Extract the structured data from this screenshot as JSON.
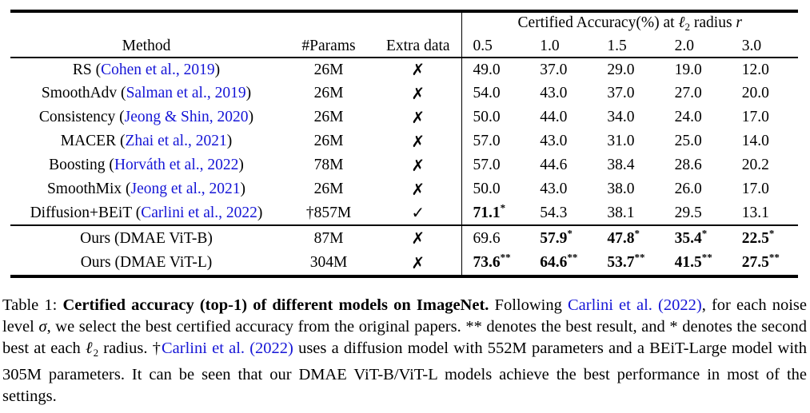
{
  "colors": {
    "citation_blue": "#1515d6",
    "text": "#000000",
    "rule": "#000000"
  },
  "symbols": {
    "cross": "✗",
    "check": "✓"
  },
  "table": {
    "header": {
      "group_title": [
        {
          "t": "Certified Accuracy(%) at "
        },
        {
          "t": "ℓ",
          "st": "i"
        },
        {
          "t": "2",
          "st": "sub"
        },
        {
          "t": " radius "
        },
        {
          "t": "r",
          "st": "i"
        }
      ],
      "col_method": "Method",
      "col_params": "#Params",
      "col_extra": "Extra data",
      "radii": [
        "0.5",
        "1.0",
        "1.5",
        "2.0",
        "3.0"
      ]
    },
    "rows": [
      {
        "method_pre": "RS (",
        "cite": "Cohen et al., 2019",
        "method_post": ")",
        "params": "26M",
        "extra": "cross",
        "values": [
          {
            "v": "49.0"
          },
          {
            "v": "37.0"
          },
          {
            "v": "29.0"
          },
          {
            "v": "19.0"
          },
          {
            "v": "12.0"
          }
        ]
      },
      {
        "method_pre": "SmoothAdv (",
        "cite": "Salman et al., 2019",
        "method_post": ")",
        "params": "26M",
        "extra": "cross",
        "values": [
          {
            "v": "54.0"
          },
          {
            "v": "43.0"
          },
          {
            "v": "37.0"
          },
          {
            "v": "27.0"
          },
          {
            "v": "20.0"
          }
        ]
      },
      {
        "method_pre": "Consistency (",
        "cite": "Jeong & Shin, 2020",
        "method_post": ")",
        "params": "26M",
        "extra": "cross",
        "values": [
          {
            "v": "50.0"
          },
          {
            "v": "44.0"
          },
          {
            "v": "34.0"
          },
          {
            "v": "24.0"
          },
          {
            "v": "17.0"
          }
        ]
      },
      {
        "method_pre": "MACER (",
        "cite": "Zhai et al., 2021",
        "method_post": ")",
        "params": "26M",
        "extra": "cross",
        "values": [
          {
            "v": "57.0"
          },
          {
            "v": "43.0"
          },
          {
            "v": "31.0"
          },
          {
            "v": "25.0"
          },
          {
            "v": "14.0"
          }
        ]
      },
      {
        "method_pre": "Boosting (",
        "cite": "Horváth et al., 2022",
        "method_post": ")",
        "params": "78M",
        "extra": "cross",
        "values": [
          {
            "v": "57.0"
          },
          {
            "v": "44.6"
          },
          {
            "v": "38.4"
          },
          {
            "v": "28.6"
          },
          {
            "v": "20.2"
          }
        ]
      },
      {
        "method_pre": "SmoothMix (",
        "cite": "Jeong et al., 2021",
        "method_post": ")",
        "params": "26M",
        "extra": "cross",
        "values": [
          {
            "v": "50.0"
          },
          {
            "v": "43.0"
          },
          {
            "v": "38.0"
          },
          {
            "v": "26.0"
          },
          {
            "v": "17.0"
          }
        ]
      },
      {
        "method_pre": "Diffusion+BEiT (",
        "cite": "Carlini et al., 2022",
        "method_post": ")",
        "params": "†857M",
        "extra": "check",
        "values": [
          {
            "v": "71.1",
            "b": true,
            "s": "*"
          },
          {
            "v": "54.3"
          },
          {
            "v": "38.1"
          },
          {
            "v": "29.5"
          },
          {
            "v": "13.1"
          }
        ]
      },
      {
        "method_pre": "Ours (DMAE ViT-B)",
        "cite": "",
        "method_post": "",
        "params": "87M",
        "extra": "cross",
        "rule_above": true,
        "ours": true,
        "values": [
          {
            "v": "69.6"
          },
          {
            "v": "57.9",
            "b": true,
            "s": "*"
          },
          {
            "v": "47.8",
            "b": true,
            "s": "*"
          },
          {
            "v": "35.4",
            "b": true,
            "s": "*"
          },
          {
            "v": "22.5",
            "b": true,
            "s": "*"
          }
        ]
      },
      {
        "method_pre": "Ours (DMAE ViT-L)",
        "cite": "",
        "method_post": "",
        "params": "304M",
        "extra": "cross",
        "ours": true,
        "values": [
          {
            "v": "73.6",
            "b": true,
            "s": "**"
          },
          {
            "v": "64.6",
            "b": true,
            "s": "**"
          },
          {
            "v": "53.7",
            "b": true,
            "s": "**"
          },
          {
            "v": "41.5",
            "b": true,
            "s": "**"
          },
          {
            "v": "27.5",
            "b": true,
            "s": "**"
          }
        ]
      }
    ]
  },
  "caption": {
    "segments": [
      {
        "t": "Table 1: "
      },
      {
        "t": "Certified accuracy (top-1) of different models on ImageNet.",
        "st": "b"
      },
      {
        "t": " Following "
      },
      {
        "t": "Carlini et al. (2022)",
        "st": "link"
      },
      {
        "t": ", for each noise level "
      },
      {
        "t": "σ",
        "st": "i"
      },
      {
        "t": ", we select the best certified accuracy from the original papers. ** denotes the best result, and * denotes the second best at each "
      },
      {
        "t": "ℓ",
        "st": "i"
      },
      {
        "t": "2",
        "st": "sub"
      },
      {
        "t": " radius. †"
      },
      {
        "t": "Carlini et al. (2022)",
        "st": "link"
      },
      {
        "t": " uses a diffusion model with 552M parameters and a BEiT-Large model with 305M parameters. It can be seen that our DMAE ViT-B/ViT-L models achieve the best performance in most of the settings."
      }
    ]
  }
}
